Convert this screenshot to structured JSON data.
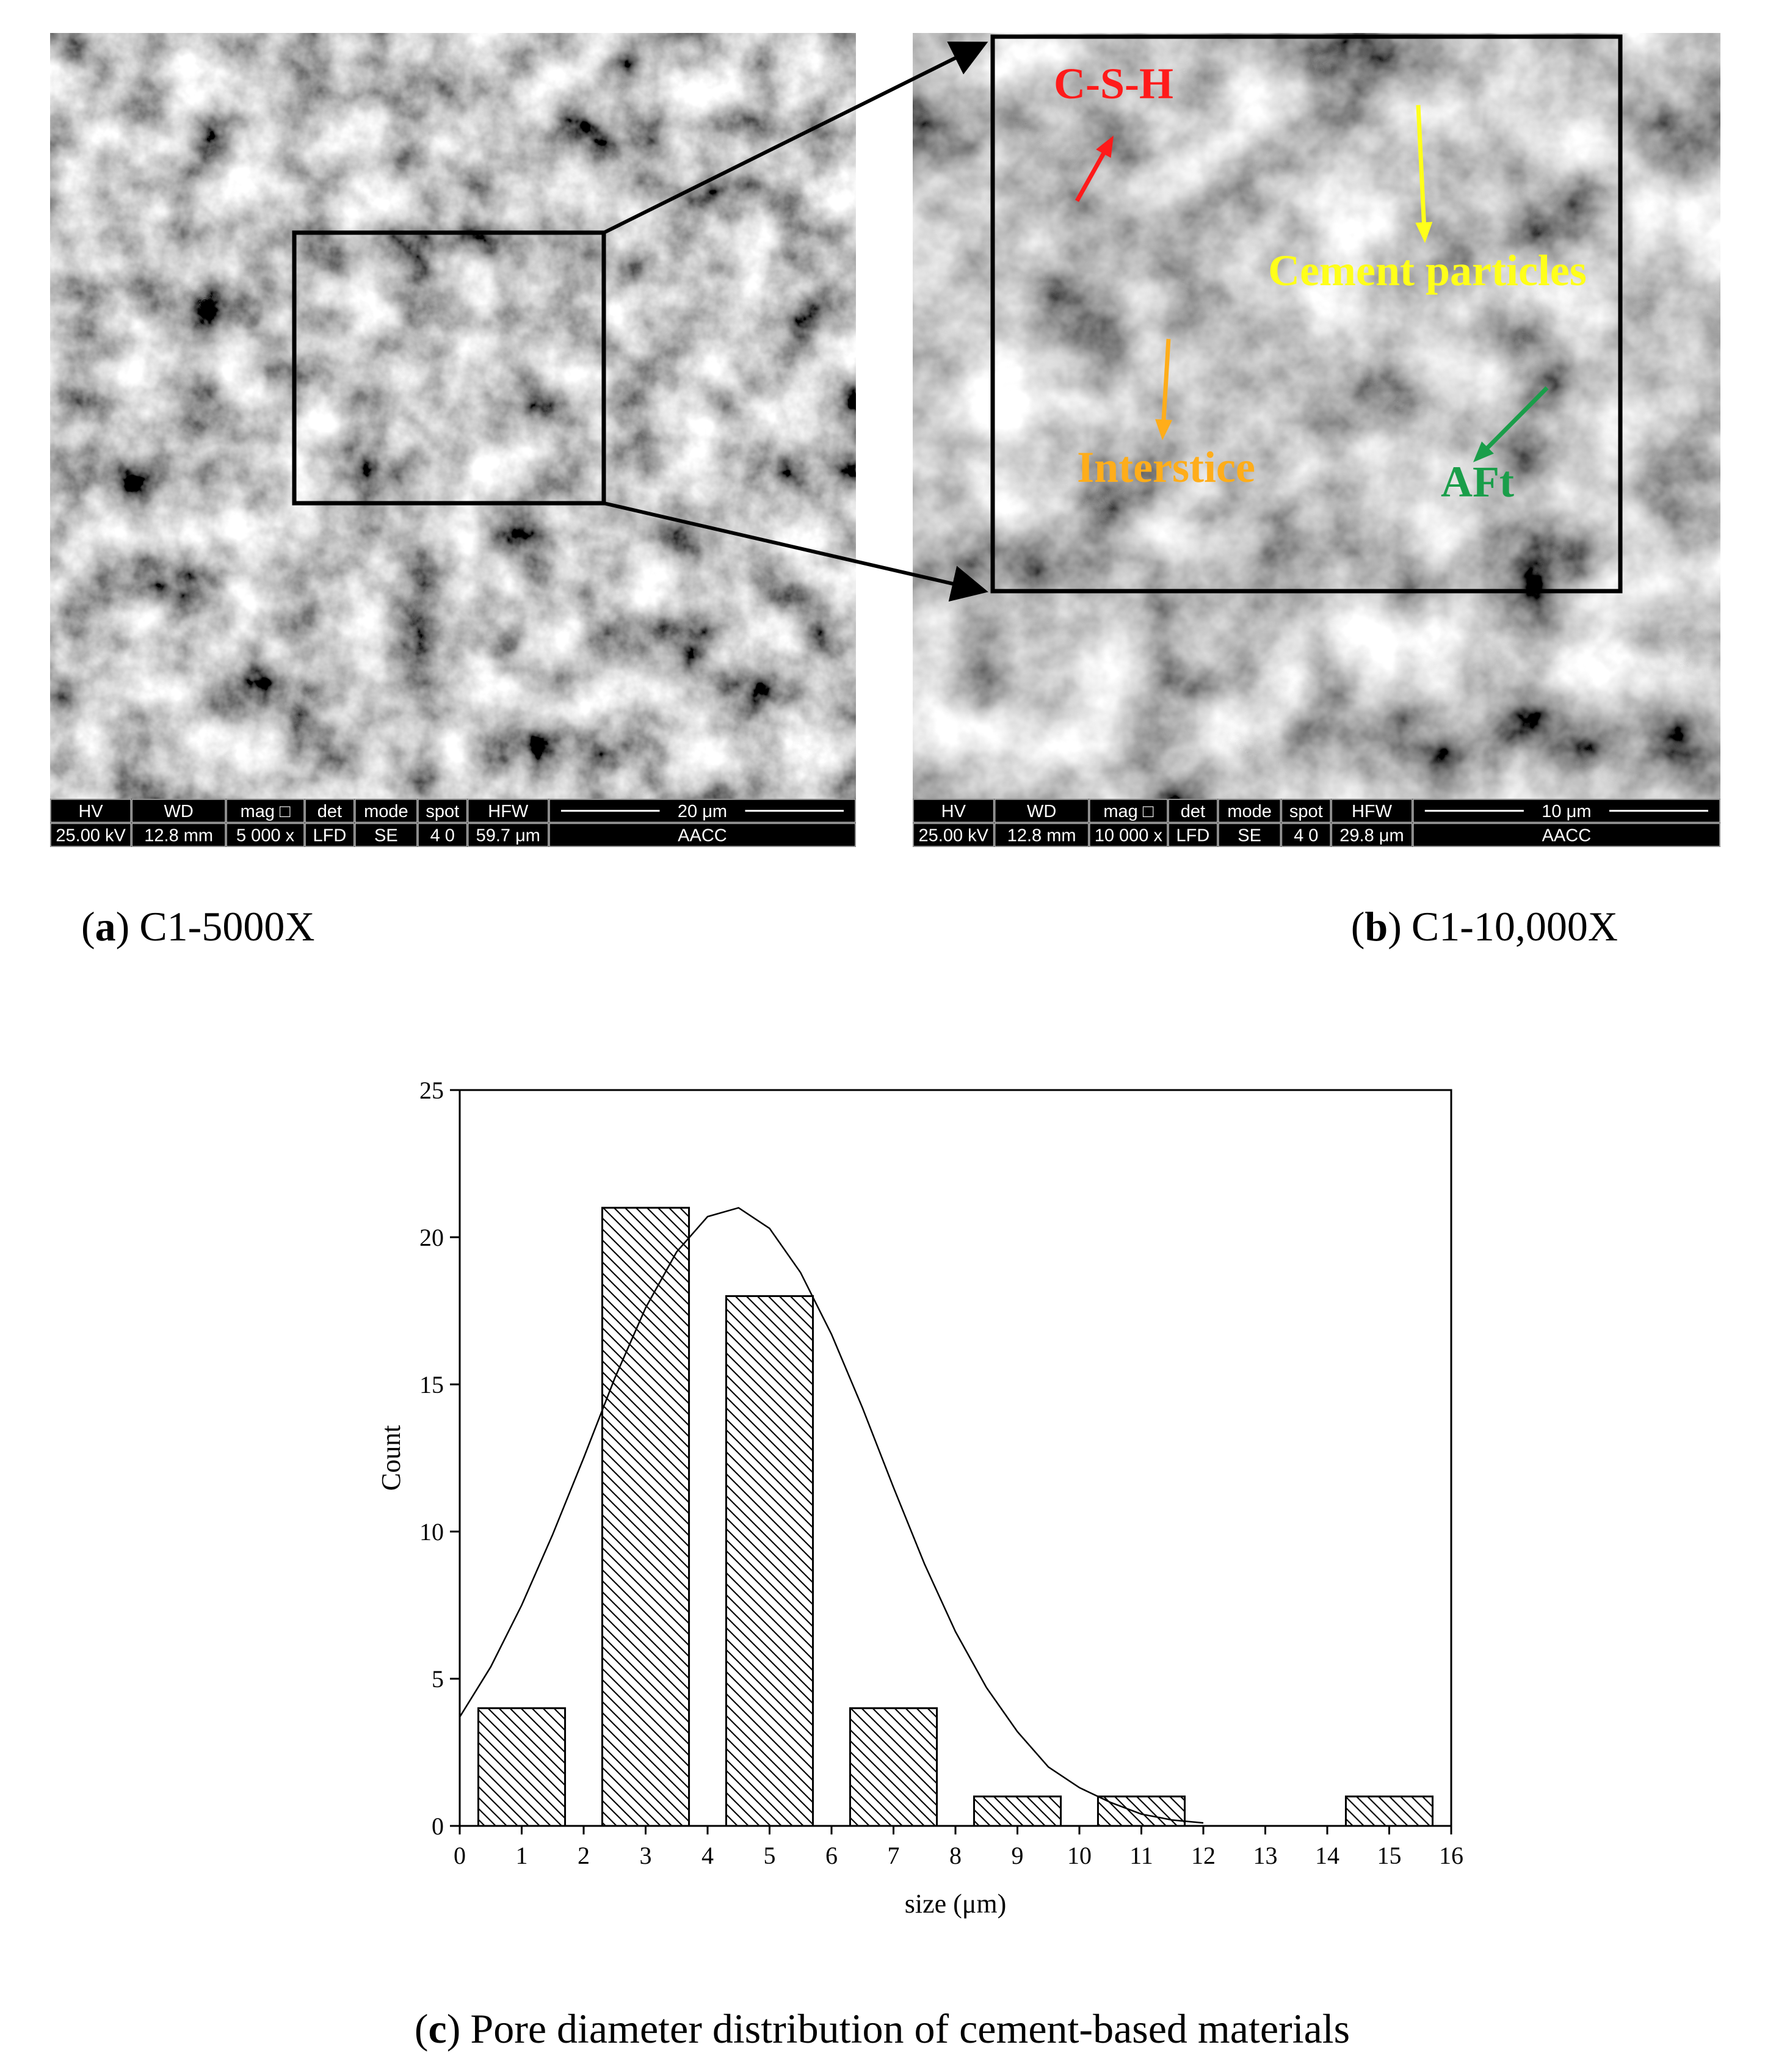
{
  "panels": [
    {
      "caption": {
        "open": "(",
        "letter": "a",
        "close": ")",
        "text": "C1-5000X"
      },
      "info_bar": {
        "headers": [
          "HV",
          "WD",
          "mag □",
          "det",
          "mode",
          "spot",
          "HFW",
          "20 μm"
        ],
        "values": [
          "25.00 kV",
          "12.8 mm",
          "5 000 x",
          "LFD",
          "SE",
          "4 0",
          "59.7 μm",
          "AACC"
        ]
      }
    },
    {
      "caption": {
        "open": "(",
        "letter": "b",
        "close": ")",
        "text": "C1-10,000X"
      },
      "info_bar": {
        "headers": [
          "HV",
          "WD",
          "mag □",
          "det",
          "mode",
          "spot",
          "HFW",
          "10 μm"
        ],
        "values": [
          "25.00 kV",
          "12.8 mm",
          "10 000 x",
          "LFD",
          "SE",
          "4 0",
          "29.8 μm",
          "AACC"
        ]
      },
      "annotations": [
        {
          "text": "C-S-H",
          "color": "#ff1a1a"
        },
        {
          "text": "Cement particles",
          "color": "#ffff1a"
        },
        {
          "text": "Interstice",
          "color": "#ffad1a"
        },
        {
          "text": "AFt",
          "color": "#1a9e4a"
        }
      ]
    }
  ],
  "chart_data": {
    "type": "histogram",
    "caption": {
      "open": "(",
      "letter": "c",
      "close": ")",
      "text": "Pore diameter distribution of cement-based materials"
    },
    "x_label": "size (μm)",
    "y_label": "Count",
    "bins": [
      0,
      2,
      4,
      6,
      8,
      10,
      12,
      14,
      16
    ],
    "values": [
      4,
      21,
      18,
      4,
      1,
      1,
      0,
      1
    ],
    "fit": {
      "x": [
        0,
        0.5,
        1,
        1.5,
        2,
        2.5,
        3,
        3.5,
        4,
        4.5,
        5,
        5.5,
        6,
        6.5,
        7,
        7.5,
        8,
        8.5,
        9,
        9.5,
        10,
        10.5,
        11,
        11.5,
        12
      ],
      "y": [
        3.7,
        5.4,
        7.5,
        9.9,
        12.5,
        15.2,
        17.6,
        19.5,
        20.7,
        21.0,
        20.3,
        18.8,
        16.7,
        14.2,
        11.5,
        8.9,
        6.6,
        4.7,
        3.2,
        2.0,
        1.3,
        0.8,
        0.4,
        0.2,
        0.1
      ]
    },
    "xlim": [
      0,
      16
    ],
    "ylim": [
      0,
      25
    ],
    "xticks": [
      0,
      1,
      2,
      3,
      4,
      5,
      6,
      7,
      8,
      9,
      10,
      11,
      12,
      13,
      14,
      15,
      16
    ],
    "yticks": [
      0,
      5,
      10,
      15,
      20,
      25
    ],
    "color": "#000000",
    "hatch": true
  }
}
